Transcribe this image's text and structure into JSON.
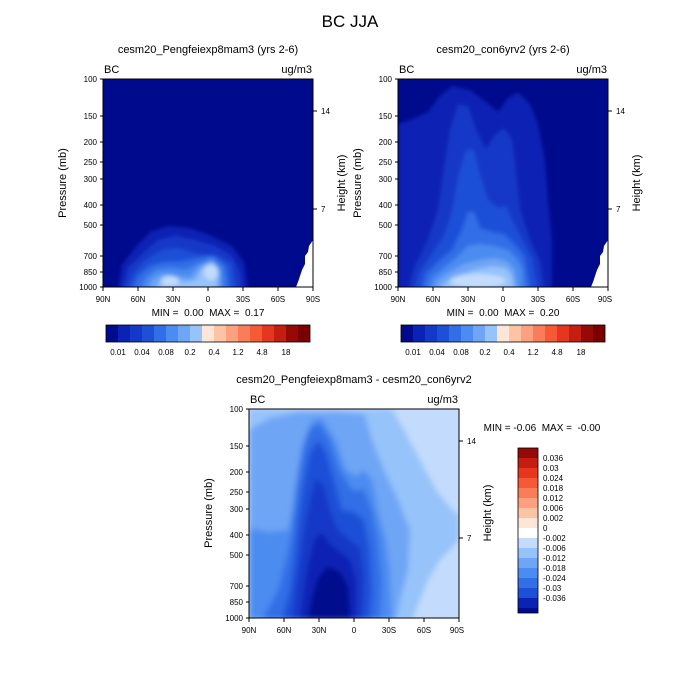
{
  "figure": {
    "title": "BC JJA"
  },
  "colors": {
    "deep_navy": "#000a8c",
    "panel_fill": "#000a8c",
    "scale_blues": [
      "#000a8c",
      "#0a23b4",
      "#1438c8",
      "#1e50d7",
      "#326ee6",
      "#4b8cf0",
      "#6ea5f5",
      "#96c3fa",
      "#c3dcfd"
    ],
    "scale_reds": [
      "#fde6d7",
      "#fcc3a5",
      "#fca080",
      "#fa7d5a",
      "#f55a35",
      "#e6371e",
      "#c31e0f",
      "#960a05"
    ],
    "white": "#ffffff"
  },
  "chart_data": [
    {
      "type": "heatmap",
      "title": "cesm20_Pengfeiexp8mam3 (yrs 2-6)",
      "left_string": "BC",
      "right_string": "ug/m3",
      "ylabel": "Pressure (mb)",
      "ylabel_right": "Height (km)",
      "x_ticks": [
        "90N",
        "60N",
        "30N",
        "0",
        "30S",
        "60S",
        "90S"
      ],
      "y_ticks": [
        100,
        150,
        200,
        250,
        300,
        400,
        500,
        700,
        850,
        1000
      ],
      "y_right_ticks": [
        14,
        7
      ],
      "ylim": [
        1000,
        100
      ],
      "y_scale": "log",
      "min": "0.00",
      "max": "0.17",
      "stats_text": "MIN =  0.00  MAX =  0.17",
      "colorbar_labels": [
        "0.01",
        "0.04",
        "0.08",
        "0.2",
        "0.4",
        "1.2",
        "4.8",
        "18"
      ],
      "background_level_index": 0,
      "plumes": [
        {
          "lat": 22,
          "pressure": 880,
          "level_index": 8
        },
        {
          "lat": 5,
          "pressure": 780,
          "level_index": 7
        },
        {
          "lat": 25,
          "pressure": 780,
          "level_index": 6
        },
        {
          "lat": 12,
          "pressure": 700,
          "level_index": 5
        },
        {
          "lat": 15,
          "pressure": 620,
          "level_index": 4
        },
        {
          "lat": 15,
          "pressure": 560,
          "level_index": 3
        },
        {
          "lat": 15,
          "pressure": 520,
          "level_index": 2
        },
        {
          "lat": 15,
          "pressure": 480,
          "level_index": 1
        }
      ]
    },
    {
      "type": "heatmap",
      "title": "cesm20_con6yrv2 (yrs 2-6)",
      "left_string": "BC",
      "right_string": "ug/m3",
      "ylabel": "Pressure (mb)",
      "ylabel_right": "Height (km)",
      "x_ticks": [
        "90N",
        "60N",
        "30N",
        "0",
        "30S",
        "60S",
        "90S"
      ],
      "y_ticks": [
        100,
        150,
        200,
        250,
        300,
        400,
        500,
        700,
        850,
        1000
      ],
      "y_right_ticks": [
        14,
        7
      ],
      "ylim": [
        1000,
        100
      ],
      "y_scale": "log",
      "min": "0.00",
      "max": "0.20",
      "stats_text": "MIN =  0.00  MAX =  0.20",
      "colorbar_labels": [
        "0.01",
        "0.04",
        "0.08",
        "0.2",
        "0.4",
        "1.2",
        "4.8",
        "18"
      ],
      "background_level_index": 0
    },
    {
      "type": "heatmap",
      "title": "cesm20_Pengfeiexp8mam3 - cesm20_con6yrv2",
      "left_string": "BC",
      "right_string": "ug/m3",
      "ylabel": "Pressure (mb)",
      "ylabel_right": "Height (km)",
      "x_ticks": [
        "90N",
        "60N",
        "30N",
        "0",
        "30S",
        "60S",
        "90S"
      ],
      "y_ticks": [
        100,
        150,
        200,
        250,
        300,
        400,
        500,
        700,
        850,
        1000
      ],
      "y_right_ticks": [
        14,
        7
      ],
      "ylim": [
        1000,
        100
      ],
      "y_scale": "log",
      "min": "-0.06",
      "max": "-0.00",
      "stats_text": "MIN = -0.06  MAX =  -0.00",
      "colorbar_labels": [
        "0.036",
        "0.03",
        "0.024",
        "0.018",
        "0.012",
        "0.006",
        "0.002",
        "0",
        "-0.002",
        "-0.006",
        "-0.012",
        "-0.018",
        "-0.024",
        "-0.03",
        "-0.036"
      ]
    }
  ]
}
